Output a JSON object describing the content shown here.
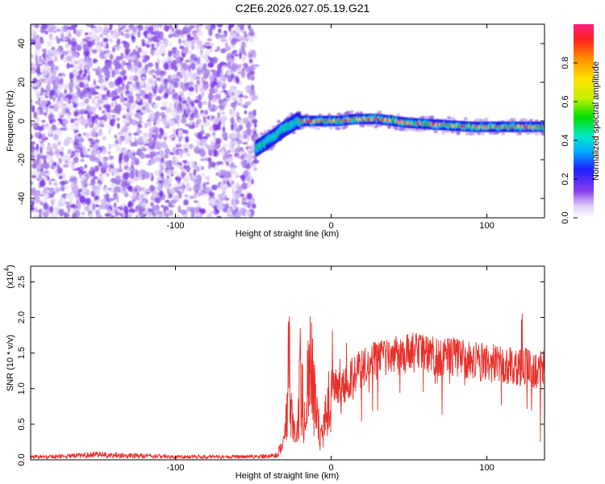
{
  "figure_title": "C2E6.2026.027.05.19.G21",
  "colors": {
    "snr_line": "#e8302a",
    "frame": "#000000",
    "colorbar": [
      "#ffffff",
      "#e0d0f8",
      "#8a3cf0",
      "#2020ff",
      "#00a8ff",
      "#00e8c8",
      "#00e000",
      "#c8f000",
      "#ffe000",
      "#ff9000",
      "#ff2020",
      "#ff2080"
    ]
  },
  "chart_data": [
    {
      "type": "heatmap",
      "xlabel": "Height of straight line (km)",
      "ylabel": "Frequency (Hz)",
      "xlim": [
        -193,
        137
      ],
      "ylim": [
        -50,
        50
      ],
      "xticks": [
        -100,
        0,
        100
      ],
      "yticks": [
        -40,
        -20,
        0,
        20,
        40
      ],
      "xtick_labels": [
        "-100",
        "0",
        "100"
      ],
      "ytick_labels": [
        "-40",
        "-20",
        "0",
        "20",
        "40"
      ],
      "colorbar": {
        "label": "Normalized spectral amplitude",
        "range": [
          0,
          1
        ],
        "ticks": [
          0.0,
          0.2,
          0.4,
          0.6,
          0.8
        ],
        "tick_labels": [
          "0.0",
          "0.2",
          "0.4",
          "0.6",
          "0.8"
        ]
      },
      "noise_region": {
        "x": [
          -193,
          -48
        ],
        "y": [
          -50,
          50
        ]
      },
      "ridge": {
        "x": [
          -48,
          -40,
          -30,
          -22,
          -15,
          -5,
          5,
          15,
          30,
          50,
          70,
          90,
          110,
          137
        ],
        "y": [
          -14,
          -10,
          -4,
          0,
          0,
          0,
          0,
          1,
          1,
          -1,
          -2,
          -3,
          -3,
          -3
        ]
      }
    },
    {
      "type": "line",
      "xlabel": "Height of straight line (km)",
      "ylabel": "SNR (10 * v/v)",
      "y_multiplier": "(x10",
      "y_multiplier_exp": "4",
      "xlim": [
        -193,
        137
      ],
      "ylim": [
        0.0,
        2.72
      ],
      "xticks": [
        -100,
        0,
        100
      ],
      "yticks": [
        0.0,
        0.5,
        1.0,
        1.5,
        2.0,
        2.5
      ],
      "xtick_labels": [
        "-100",
        "0",
        "100"
      ],
      "ytick_labels": [
        "0.0",
        "0.5",
        "1.0",
        "1.5",
        "2.0",
        "2.5"
      ],
      "series": [
        {
          "x": [
            -193,
            -170,
            -150,
            -120,
            -100,
            -80,
            -60,
            -48,
            -35,
            -30,
            -28,
            -27,
            -26,
            -24,
            -22,
            -20,
            -17,
            -14,
            -10,
            -7,
            -3,
            0,
            5,
            10,
            15,
            20,
            25,
            30,
            40,
            50,
            60,
            70,
            80,
            90,
            100,
            110,
            120,
            125,
            130,
            137
          ],
          "y": [
            0.04,
            0.05,
            0.07,
            0.05,
            0.04,
            0.04,
            0.04,
            0.04,
            0.06,
            0.25,
            0.9,
            1.7,
            0.8,
            0.4,
            0.3,
            1.3,
            0.6,
            1.6,
            0.9,
            0.3,
            0.8,
            1.0,
            1.0,
            1.1,
            1.2,
            1.3,
            1.35,
            1.4,
            1.45,
            1.5,
            1.5,
            1.45,
            1.45,
            1.4,
            1.35,
            1.35,
            1.3,
            1.3,
            1.25,
            1.3
          ]
        }
      ]
    }
  ]
}
